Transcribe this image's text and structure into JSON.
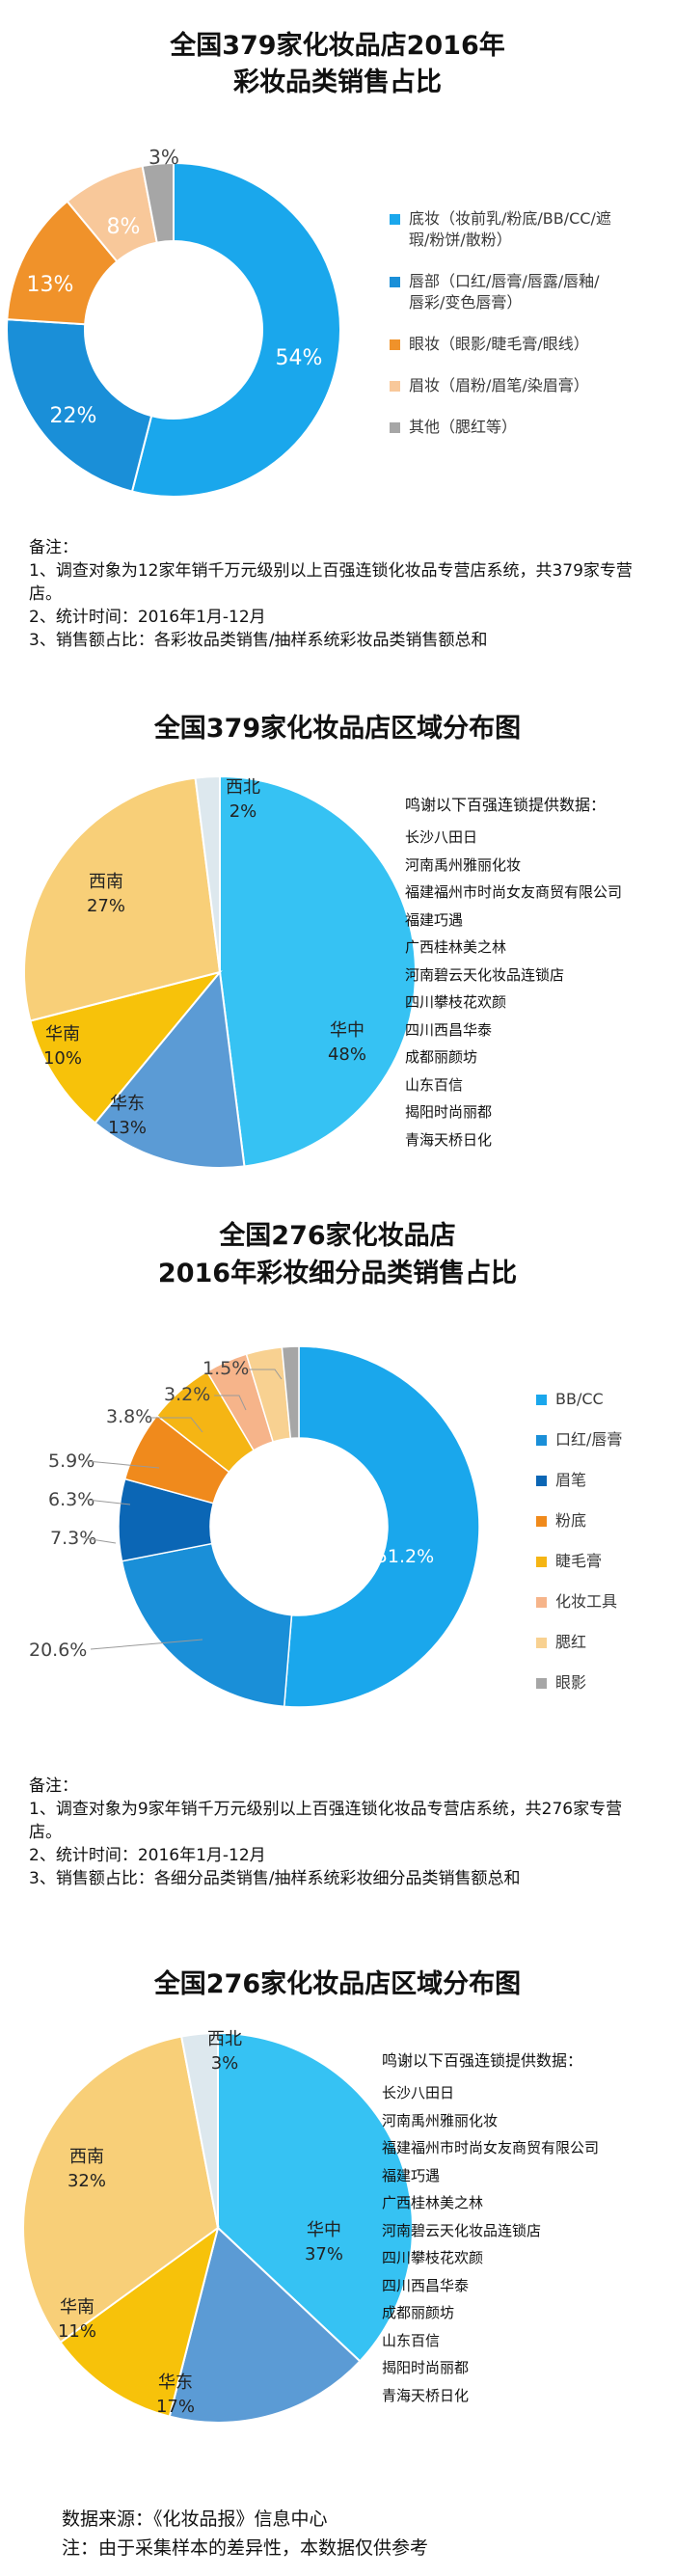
{
  "charts": [
    {
      "title_lines": [
        "全国379家化妆品店2016年",
        "彩妆品类销售占比"
      ],
      "chart_data": {
        "type": "pie",
        "variant": "donut",
        "title": "全国379家化妆品店2016年彩妆品类销售占比",
        "slices": [
          {
            "name": "底妆（妆前乳/粉底/BB/CC/遮瑕/粉饼/散粉）",
            "value": 54,
            "label": "54%",
            "color": "#1aa7ec"
          },
          {
            "name": "唇部（口红/唇膏/唇露/唇釉/唇彩/变色唇膏）",
            "value": 22,
            "label": "22%",
            "color": "#1a8fd8"
          },
          {
            "name": "眼妆（眼影/睫毛膏/眼线）",
            "value": 13,
            "label": "13%",
            "color": "#f0922a"
          },
          {
            "name": "眉妆（眉粉/眉笔/染眉膏）",
            "value": 8,
            "label": "8%",
            "color": "#f8c89a"
          },
          {
            "name": "其他（腮红等）",
            "value": 3,
            "label": "3%",
            "color": "#a6a6a6"
          }
        ],
        "legend": [
          [
            "底妆（妆前乳/粉底/BB/CC/遮",
            "瑕/粉饼/散粉）"
          ],
          [
            "唇部（口红/唇膏/唇露/唇釉/",
            "唇彩/变色唇膏）"
          ],
          [
            "眼妆（眼影/睫毛膏/眼线）"
          ],
          [
            "眉妆（眉粉/眉笔/染眉膏）"
          ],
          [
            "其他（腮红等）"
          ]
        ]
      },
      "notes": [
        "备注：",
        "1、调查对象为12家年销千万元级别以上百强连锁化妆品专营店系统，共379家专营店。",
        "2、统计时间：2016年1月-12月",
        "3、销售额占比：各彩妆品类销售/抽样系统彩妆品类销售额总和"
      ]
    },
    {
      "title_lines": [
        "全国379家化妆品店区域分布图"
      ],
      "chart_data": {
        "type": "pie",
        "title": "全国379家化妆品店区域分布图",
        "slices": [
          {
            "name": "华中",
            "value": 48,
            "label": "48%",
            "color": "#36c2f3"
          },
          {
            "name": "华东",
            "value": 13,
            "label": "13%",
            "color": "#5b9bd5"
          },
          {
            "name": "华南",
            "value": 10,
            "label": "10%",
            "color": "#f7c20a"
          },
          {
            "name": "西南",
            "value": 27,
            "label": "27%",
            "color": "#f8cf78"
          },
          {
            "name": "西北",
            "value": 2,
            "label": "2%",
            "color": "#dde8ee"
          }
        ]
      },
      "thanks_title": "鸣谢以下百强连锁提供数据：",
      "thanks": [
        "长沙八田日",
        "河南禹州雅丽化妆",
        "福建福州市时尚女友商贸有限公司",
        "福建巧遇",
        "广西桂林美之林",
        "河南碧云天化妆品连锁店",
        "四川攀枝花欢颜",
        "四川西昌华泰",
        "成都丽颜坊",
        "山东百信",
        "揭阳时尚丽都",
        "青海天桥日化"
      ]
    },
    {
      "title_lines": [
        "全国276家化妆品店",
        "2016年彩妆细分品类销售占比"
      ],
      "chart_data": {
        "type": "pie",
        "variant": "donut",
        "title": "全国276家化妆品店2016年彩妆细分品类销售占比",
        "slices": [
          {
            "name": "BB/CC",
            "value": 51.2,
            "label": "51.2%",
            "color": "#1aa7ec"
          },
          {
            "name": "口红/唇膏",
            "value": 20.6,
            "label": "20.6%",
            "color": "#1a8fd8"
          },
          {
            "name": "眉笔",
            "value": 7.3,
            "label": "7.3%",
            "color": "#0b66b5"
          },
          {
            "name": "粉底",
            "value": 6.3,
            "label": "6.3%",
            "color": "#f08a1c"
          },
          {
            "name": "睫毛膏",
            "value": 5.9,
            "label": "5.9%",
            "color": "#f5b514"
          },
          {
            "name": "化妆工具",
            "value": 3.8,
            "label": "3.8%",
            "color": "#f6b48a"
          },
          {
            "name": "腮红",
            "value": 3.2,
            "label": "3.2%",
            "color": "#f8d191"
          },
          {
            "name": "眼影",
            "value": 1.5,
            "label": "1.5%",
            "color": "#a6a6a6"
          }
        ]
      },
      "notes": [
        "备注：",
        "1、调查对象为9家年销千万元级别以上百强连锁化妆品专营店系统，共276家专营店。",
        "2、统计时间：2016年1月-12月",
        "3、销售额占比：各细分品类销售/抽样系统彩妆细分品类销售额总和"
      ]
    },
    {
      "title_lines": [
        "全国276家化妆品店区域分布图"
      ],
      "chart_data": {
        "type": "pie",
        "title": "全国276家化妆品店区域分布图",
        "slices": [
          {
            "name": "华中",
            "value": 37,
            "label": "37%",
            "color": "#36c2f3"
          },
          {
            "name": "华东",
            "value": 17,
            "label": "17%",
            "color": "#5b9bd5"
          },
          {
            "name": "华南",
            "value": 11,
            "label": "11%",
            "color": "#f7c20a"
          },
          {
            "name": "西南",
            "value": 32,
            "label": "32%",
            "color": "#f8cf78"
          },
          {
            "name": "西北",
            "value": 3,
            "label": "3%",
            "color": "#dde8ee"
          }
        ]
      },
      "thanks_title": "鸣谢以下百强连锁提供数据：",
      "thanks": [
        "长沙八田日",
        "河南禹州雅丽化妆",
        "福建福州市时尚女友商贸有限公司",
        "福建巧遇",
        "广西桂林美之林",
        "河南碧云天化妆品连锁店",
        "四川攀枝花欢颜",
        "四川西昌华泰",
        "成都丽颜坊",
        "山东百信",
        "揭阳时尚丽都",
        "青海天桥日化"
      ]
    }
  ],
  "footer": {
    "source": "数据来源：《化妆品报》信息中心",
    "note": "注：由于采集样本的差异性，本数据仅供参考"
  }
}
